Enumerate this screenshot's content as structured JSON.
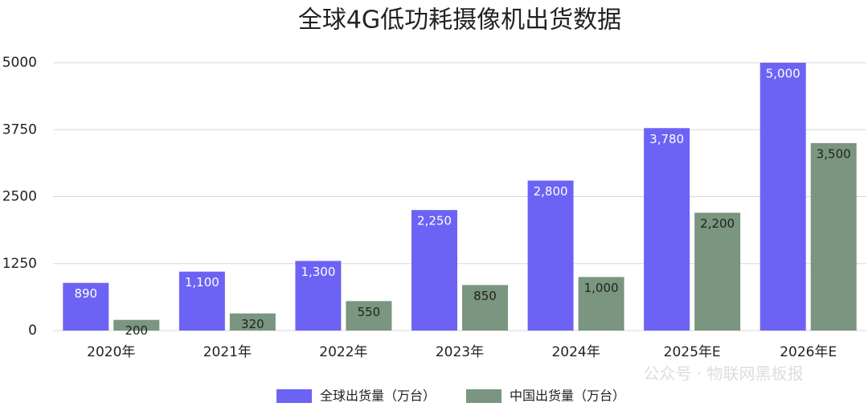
{
  "chart_data": {
    "type": "bar",
    "title": "全球4G低功耗摄像机出货数据",
    "categories": [
      "2020年",
      "2021年",
      "2022年",
      "2023年",
      "2024年",
      "2025年E",
      "2026年E"
    ],
    "series": [
      {
        "name": "全球出货量（万台）",
        "color": "#6c63f5",
        "values": [
          890,
          1100,
          1300,
          2250,
          2800,
          3780,
          5000
        ],
        "value_labels": [
          "890",
          "1,100",
          "1,300",
          "2,250",
          "2,800",
          "3,780",
          "5,000"
        ]
      },
      {
        "name": "中国出货量（万台）",
        "color": "#7a9580",
        "values": [
          200,
          320,
          550,
          850,
          1000,
          2200,
          3500
        ],
        "value_labels": [
          "200",
          "320",
          "550",
          "850",
          "1,000",
          "2,200",
          "3,500"
        ]
      }
    ],
    "ylim": [
      0,
      5000
    ],
    "yticks": [
      0,
      1250,
      2500,
      3750,
      5000
    ],
    "grid": true,
    "watermark": "公众号 · 物联网黑板报"
  }
}
